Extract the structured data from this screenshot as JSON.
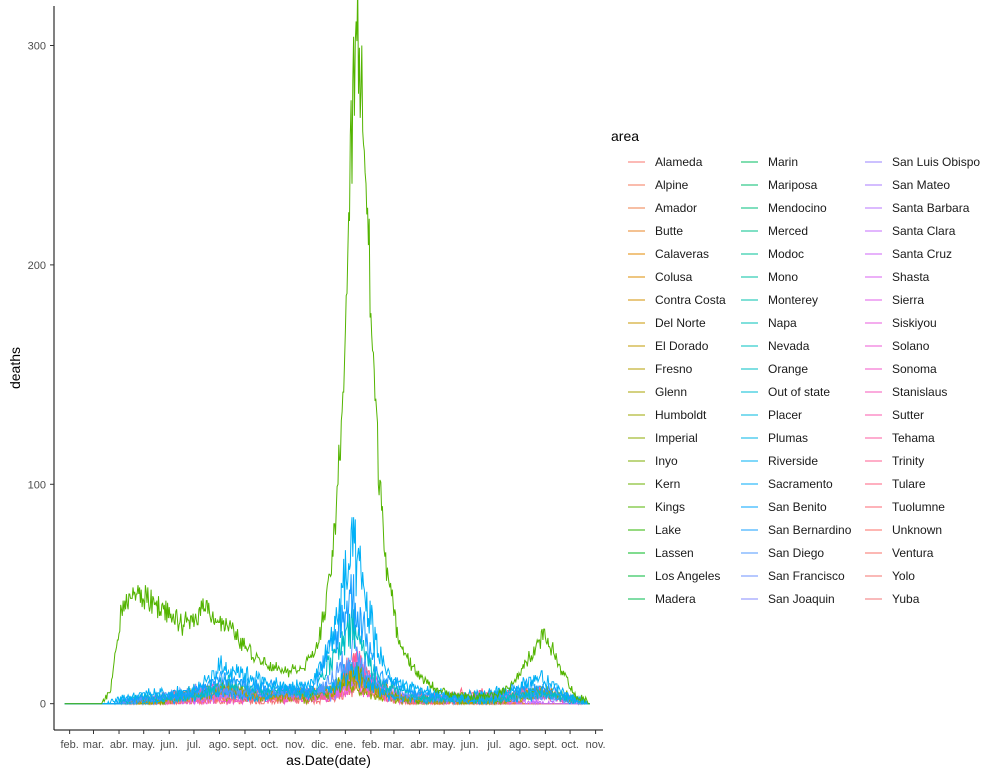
{
  "chart_data": {
    "type": "line",
    "xlabel": "as.Date(date)",
    "ylabel": "deaths",
    "x_ticks": [
      "feb.",
      "mar.",
      "abr.",
      "may.",
      "jun.",
      "jul.",
      "ago.",
      "sept.",
      "oct.",
      "nov.",
      "dic.",
      "ene.",
      "feb.",
      "mar.",
      "abr.",
      "may.",
      "jun.",
      "jul.",
      "ago.",
      "sept.",
      "oct.",
      "nov."
    ],
    "x_tick_dates": [
      "2020-02-01",
      "2020-03-01",
      "2020-04-01",
      "2020-05-01",
      "2020-06-01",
      "2020-07-01",
      "2020-08-01",
      "2020-09-01",
      "2020-10-01",
      "2020-11-01",
      "2020-12-01",
      "2021-01-01",
      "2021-02-01",
      "2021-03-01",
      "2021-04-01",
      "2021-05-01",
      "2021-06-01",
      "2021-07-01",
      "2021-08-01",
      "2021-09-01",
      "2021-10-01",
      "2021-11-01"
    ],
    "x_range": [
      "2020-01-13",
      "2021-11-10"
    ],
    "data_range": [
      "2020-01-26",
      "2021-10-25"
    ],
    "y_ticks": [
      0,
      100,
      200,
      300
    ],
    "ylim": [
      -12,
      318
    ],
    "grid": false,
    "legend": {
      "title": "area",
      "placement": "right",
      "columns": 3,
      "entries": [
        "Alameda",
        "Alpine",
        "Amador",
        "Butte",
        "Calaveras",
        "Colusa",
        "Contra Costa",
        "Del Norte",
        "El Dorado",
        "Fresno",
        "Glenn",
        "Humboldt",
        "Imperial",
        "Inyo",
        "Kern",
        "Kings",
        "Lake",
        "Lassen",
        "Los Angeles",
        "Madera",
        "Marin",
        "Mariposa",
        "Mendocino",
        "Merced",
        "Modoc",
        "Mono",
        "Monterey",
        "Napa",
        "Nevada",
        "Orange",
        "Out of state",
        "Placer",
        "Plumas",
        "Riverside",
        "Sacramento",
        "San Benito",
        "San Bernardino",
        "San Diego",
        "San Francisco",
        "San Joaquin",
        "San Luis Obispo",
        "San Mateo",
        "Santa Barbara",
        "Santa Clara",
        "Santa Cruz",
        "Shasta",
        "Sierra",
        "Siskiyou",
        "Solano",
        "Sonoma",
        "Stanislaus",
        "Sutter",
        "Tehama",
        "Trinity",
        "Tulare",
        "Tuolumne",
        "Unknown",
        "Ventura",
        "Yolo",
        "Yuba"
      ],
      "colors": [
        "#F8766D",
        "#F47A5B",
        "#EF7F4A",
        "#E88526",
        "#E38900",
        "#DC8D00",
        "#D39200",
        "#CA9700",
        "#C09B00",
        "#B59F00",
        "#A9A300",
        "#9CA700",
        "#8EAB00",
        "#7EAE00",
        "#6BB100",
        "#53B400",
        "#2EB600",
        "#00B81F",
        "#00BA38",
        "#00BB4E",
        "#00BC60",
        "#00BE6F",
        "#00BF7D",
        "#00C08B",
        "#00C097",
        "#00C1A3",
        "#00C1AE",
        "#00C0B8",
        "#00C0C2",
        "#00BFC4",
        "#00BCD6",
        "#00B9DF",
        "#00B5E7",
        "#00B0F6",
        "#00ABF9",
        "#00A5FF",
        "#169FFF",
        "#4F98FF",
        "#6E92FF",
        "#868BFF",
        "#9983FF",
        "#A97BFF",
        "#B874FF",
        "#C46CFD",
        "#CF66F7",
        "#D961F0",
        "#E15DE8",
        "#E85BDE",
        "#EE58D4",
        "#F356C8",
        "#F757BB",
        "#FB58AE",
        "#FD5BA0",
        "#FF5E91",
        "#FF6282",
        "#FE6773",
        "#FC6C64",
        "#F9716A",
        "#F6736F",
        "#F37577"
      ]
    },
    "series_profiles": {
      "Los Angeles": {
        "color": "#53B400",
        "values": [
          [
            0,
            0
          ],
          [
            45,
            0
          ],
          [
            55,
            5
          ],
          [
            60,
            18
          ],
          [
            68,
            40
          ],
          [
            80,
            50
          ],
          [
            100,
            48
          ],
          [
            120,
            43
          ],
          [
            140,
            36
          ],
          [
            155,
            37
          ],
          [
            170,
            46
          ],
          [
            185,
            38
          ],
          [
            200,
            35
          ],
          [
            215,
            28
          ],
          [
            230,
            22
          ],
          [
            250,
            17
          ],
          [
            275,
            15
          ],
          [
            290,
            17
          ],
          [
            305,
            24
          ],
          [
            318,
            45
          ],
          [
            330,
            85
          ],
          [
            340,
            160
          ],
          [
            347,
            240
          ],
          [
            352,
            290
          ],
          [
            356,
            302
          ],
          [
            360,
            288
          ],
          [
            366,
            240
          ],
          [
            373,
            170
          ],
          [
            381,
            110
          ],
          [
            392,
            60
          ],
          [
            405,
            30
          ],
          [
            425,
            15
          ],
          [
            445,
            8
          ],
          [
            470,
            4
          ],
          [
            495,
            3
          ],
          [
            520,
            4
          ],
          [
            540,
            7
          ],
          [
            555,
            15
          ],
          [
            570,
            25
          ],
          [
            582,
            32
          ],
          [
            592,
            25
          ],
          [
            600,
            18
          ],
          [
            610,
            12
          ],
          [
            617,
            5
          ],
          [
            638,
            0
          ]
        ],
        "noise": 0.11
      },
      "Riverside": {
        "color": "#00B0F6",
        "values": [
          [
            0,
            0
          ],
          [
            50,
            0
          ],
          [
            70,
            3
          ],
          [
            120,
            5
          ],
          [
            160,
            6
          ],
          [
            190,
            17
          ],
          [
            210,
            15
          ],
          [
            240,
            10
          ],
          [
            270,
            7
          ],
          [
            300,
            9
          ],
          [
            320,
            24
          ],
          [
            335,
            45
          ],
          [
            345,
            63
          ],
          [
            352,
            68
          ],
          [
            360,
            55
          ],
          [
            370,
            40
          ],
          [
            382,
            22
          ],
          [
            400,
            10
          ],
          [
            430,
            6
          ],
          [
            480,
            3
          ],
          [
            540,
            6
          ],
          [
            575,
            12
          ],
          [
            595,
            8
          ],
          [
            617,
            3
          ],
          [
            638,
            0
          ]
        ],
        "noise": 0.28
      },
      "San Bernardino": {
        "color": "#169FFF",
        "values": [
          [
            0,
            0
          ],
          [
            60,
            0
          ],
          [
            80,
            2
          ],
          [
            150,
            4
          ],
          [
            190,
            12
          ],
          [
            220,
            9
          ],
          [
            300,
            6
          ],
          [
            330,
            30
          ],
          [
            348,
            50
          ],
          [
            360,
            38
          ],
          [
            380,
            14
          ],
          [
            420,
            5
          ],
          [
            500,
            2
          ],
          [
            560,
            8
          ],
          [
            590,
            6
          ],
          [
            638,
            0
          ]
        ],
        "noise": 0.3
      },
      "Orange": {
        "color": "#00BFC4",
        "values": [
          [
            0,
            0
          ],
          [
            60,
            0
          ],
          [
            90,
            3
          ],
          [
            160,
            3
          ],
          [
            190,
            10
          ],
          [
            220,
            7
          ],
          [
            300,
            5
          ],
          [
            330,
            22
          ],
          [
            350,
            35
          ],
          [
            362,
            25
          ],
          [
            385,
            9
          ],
          [
            430,
            3
          ],
          [
            520,
            2
          ],
          [
            570,
            5
          ],
          [
            600,
            4
          ],
          [
            638,
            0
          ]
        ],
        "noise": 0.3
      },
      "San Diego": {
        "color": "#4F98FF",
        "values": [
          [
            0,
            0
          ],
          [
            60,
            0
          ],
          [
            90,
            2
          ],
          [
            180,
            6
          ],
          [
            220,
            5
          ],
          [
            310,
            6
          ],
          [
            335,
            16
          ],
          [
            352,
            26
          ],
          [
            365,
            18
          ],
          [
            390,
            6
          ],
          [
            450,
            2
          ],
          [
            560,
            4
          ],
          [
            600,
            3
          ],
          [
            638,
            0
          ]
        ],
        "noise": 0.35
      },
      "Sacramento": {
        "color": "#00ABF9",
        "values": [
          [
            0,
            0
          ],
          [
            60,
            0
          ],
          [
            100,
            1
          ],
          [
            190,
            5
          ],
          [
            230,
            3
          ],
          [
            320,
            6
          ],
          [
            350,
            16
          ],
          [
            365,
            10
          ],
          [
            400,
            3
          ],
          [
            500,
            1
          ],
          [
            580,
            4
          ],
          [
            638,
            0
          ]
        ],
        "noise": 0.4
      },
      "Fresno": {
        "color": "#B59F00",
        "values": [
          [
            0,
            0
          ],
          [
            60,
            0
          ],
          [
            110,
            1
          ],
          [
            200,
            6
          ],
          [
            230,
            3
          ],
          [
            320,
            5
          ],
          [
            350,
            14
          ],
          [
            370,
            8
          ],
          [
            410,
            2
          ],
          [
            520,
            1
          ],
          [
            585,
            5
          ],
          [
            638,
            0
          ]
        ],
        "noise": 0.4
      },
      "Kern": {
        "color": "#6BB100",
        "values": [
          [
            0,
            0
          ],
          [
            60,
            0
          ],
          [
            110,
            1
          ],
          [
            200,
            7
          ],
          [
            240,
            4
          ],
          [
            320,
            5
          ],
          [
            352,
            15
          ],
          [
            372,
            9
          ],
          [
            410,
            2
          ],
          [
            520,
            1
          ],
          [
            585,
            6
          ],
          [
            638,
            0
          ]
        ],
        "noise": 0.4
      },
      "Santa Clara": {
        "color": "#C46CFD",
        "values": [
          [
            0,
            0
          ],
          [
            60,
            0
          ],
          [
            100,
            2
          ],
          [
            200,
            3
          ],
          [
            330,
            6
          ],
          [
            355,
            14
          ],
          [
            375,
            7
          ],
          [
            420,
            2
          ],
          [
            638,
            0
          ]
        ],
        "noise": 0.4
      },
      "Stanislaus": {
        "color": "#F757BB",
        "values": [
          [
            0,
            0
          ],
          [
            60,
            0
          ],
          [
            110,
            1
          ],
          [
            195,
            6
          ],
          [
            230,
            3
          ],
          [
            330,
            5
          ],
          [
            355,
            18
          ],
          [
            372,
            9
          ],
          [
            420,
            2
          ],
          [
            580,
            4
          ],
          [
            638,
            0
          ]
        ],
        "noise": 0.45
      },
      "Tulare": {
        "color": "#FF6282",
        "values": [
          [
            0,
            0
          ],
          [
            60,
            0
          ],
          [
            100,
            2
          ],
          [
            195,
            7
          ],
          [
            230,
            4
          ],
          [
            330,
            5
          ],
          [
            352,
            22
          ],
          [
            368,
            12
          ],
          [
            410,
            3
          ],
          [
            580,
            5
          ],
          [
            638,
            0
          ]
        ],
        "noise": 0.45
      },
      "San Joaquin": {
        "color": "#868BFF",
        "values": [
          [
            0,
            0
          ],
          [
            60,
            0
          ],
          [
            110,
            2
          ],
          [
            195,
            8
          ],
          [
            230,
            4
          ],
          [
            330,
            5
          ],
          [
            352,
            16
          ],
          [
            372,
            9
          ],
          [
            410,
            2
          ],
          [
            580,
            3
          ],
          [
            638,
            0
          ]
        ],
        "noise": 0.45
      },
      "Ventura": {
        "color": "#F9716A",
        "values": [
          [
            0,
            0
          ],
          [
            70,
            0
          ],
          [
            120,
            1
          ],
          [
            200,
            3
          ],
          [
            330,
            4
          ],
          [
            352,
            14
          ],
          [
            372,
            6
          ],
          [
            420,
            1
          ],
          [
            638,
            0
          ]
        ],
        "noise": 0.45
      },
      "Imperial": {
        "color": "#8EAB00",
        "values": [
          [
            0,
            0
          ],
          [
            80,
            0
          ],
          [
            130,
            2
          ],
          [
            160,
            6
          ],
          [
            200,
            4
          ],
          [
            300,
            2
          ],
          [
            345,
            10
          ],
          [
            370,
            5
          ],
          [
            420,
            1
          ],
          [
            638,
            0
          ]
        ],
        "noise": 0.45
      },
      "Alameda": {
        "color": "#F8766D",
        "values": [
          [
            0,
            0
          ],
          [
            60,
            0
          ],
          [
            100,
            2
          ],
          [
            200,
            3
          ],
          [
            330,
            5
          ],
          [
            352,
            12
          ],
          [
            375,
            6
          ],
          [
            420,
            1
          ],
          [
            638,
            0
          ]
        ],
        "noise": 0.45
      },
      "Solano": {
        "color": "#EE58D4",
        "values": [
          [
            0,
            0
          ],
          [
            80,
            0
          ],
          [
            150,
            1
          ],
          [
            330,
            3
          ],
          [
            355,
            9
          ],
          [
            375,
            4
          ],
          [
            420,
            1
          ],
          [
            638,
            0
          ]
        ],
        "noise": 0.45
      },
      "Yuba": {
        "color": "#F37577",
        "values": [
          [
            0,
            0
          ],
          [
            80,
            0
          ],
          [
            150,
            1
          ],
          [
            330,
            2
          ],
          [
            355,
            8
          ],
          [
            375,
            4
          ],
          [
            420,
            1
          ],
          [
            638,
            0
          ]
        ],
        "noise": 0.45
      }
    }
  }
}
